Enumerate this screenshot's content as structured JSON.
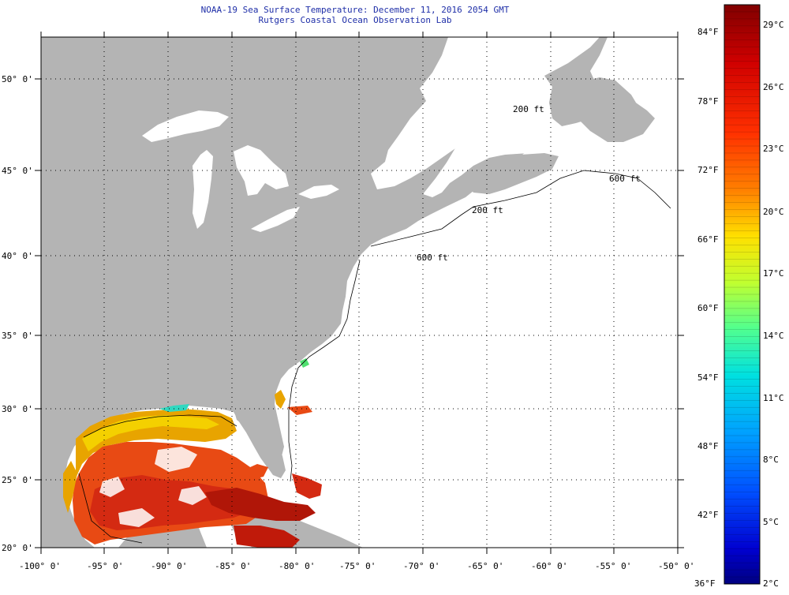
{
  "title": {
    "line1": "NOAA-19 Sea Surface Temperature:  December 11, 2016 2054 GMT",
    "line2": "Rutgers Coastal Ocean Observation Lab"
  },
  "axes": {
    "x_ticks": [
      "-100° 0'",
      "-95° 0'",
      "-90° 0'",
      "-85° 0'",
      "-80° 0'",
      "-75° 0'",
      "-70° 0'",
      "-65° 0'",
      "-60° 0'",
      "-55° 0'",
      "-50° 0'"
    ],
    "y_ticks": [
      "20° 0'",
      "25° 0'",
      "30° 0'",
      "35° 0'",
      "40° 0'",
      "45° 0'",
      "50° 0'"
    ],
    "lon_range": [
      -100,
      -50
    ],
    "lat_range": [
      20,
      52
    ]
  },
  "isobath_labels": [
    "200 ft",
    "200 ft",
    "600 ft",
    "600 ft"
  ],
  "colorbar": {
    "fahrenheit": [
      "84°F",
      "78°F",
      "72°F",
      "66°F",
      "60°F",
      "54°F",
      "48°F",
      "42°F",
      "36°F"
    ],
    "celsius": [
      "29°C",
      "26°C",
      "23°C",
      "20°C",
      "17°C",
      "14°C",
      "11°C",
      "8°C",
      "5°C",
      "2°C"
    ],
    "colors": [
      "#7a0000",
      "#c80000",
      "#ff2a00",
      "#ff7a00",
      "#ffd400",
      "#c8ff2a",
      "#5aff8a",
      "#00e0e0",
      "#00a0ff",
      "#0050ff",
      "#0000d0",
      "#000080"
    ]
  },
  "colors": {
    "land": "#b4b4b4",
    "water_no_data": "#ffffff",
    "title": "#1f2fa8"
  }
}
